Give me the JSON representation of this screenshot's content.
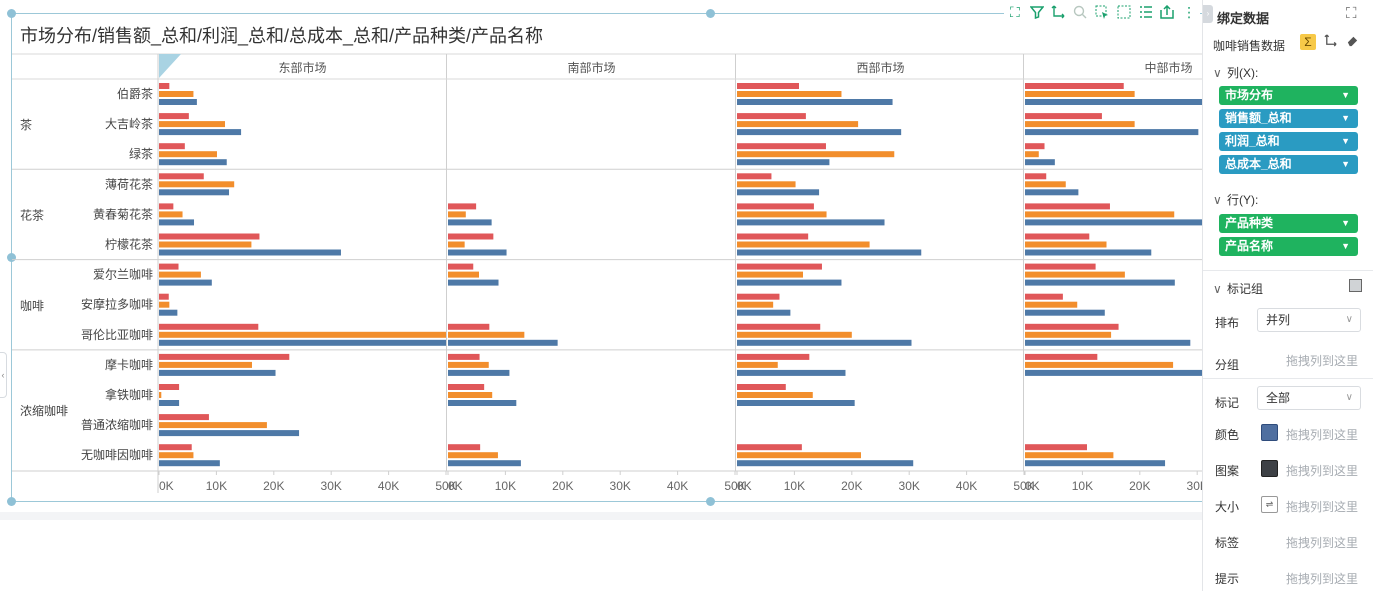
{
  "chart_title": "市场分布/销售额_总和/利润_总和/总成本_总和/产品种类/产品名称",
  "chart_data": {
    "type": "bar",
    "orientation": "horizontal",
    "columns": [
      "东部市场",
      "南部市场",
      "西部市场",
      "中部市场"
    ],
    "groups": [
      {
        "name": "茶",
        "products": [
          "伯爵茶",
          "大吉岭茶",
          "绿茶"
        ]
      },
      {
        "name": "花茶",
        "products": [
          "薄荷花茶",
          "黄春菊花茶",
          "柠檬花茶"
        ]
      },
      {
        "name": "咖啡",
        "products": [
          "爱尔兰咖啡",
          "安摩拉多咖啡",
          "哥伦比亚咖啡"
        ]
      },
      {
        "name": "浓缩咖啡",
        "products": [
          "摩卡咖啡",
          "拿铁咖啡",
          "普通浓缩咖啡",
          "无咖啡因咖啡"
        ]
      }
    ],
    "series": [
      {
        "name": "利润_总和",
        "color": "#e05759"
      },
      {
        "name": "销售额_总和",
        "color": "#f28e2c"
      },
      {
        "name": "总成本_总和",
        "color": "#4e79a7"
      }
    ],
    "x_ticks": [
      "0K",
      "10K",
      "20K",
      "30K",
      "40K",
      "50K"
    ],
    "xlim": [
      0,
      50000
    ],
    "values": {
      "东部市场": {
        "伯爵茶": [
          1800,
          6000,
          6600
        ],
        "大吉岭茶": [
          5200,
          11500,
          14300
        ],
        "绿茶": [
          4500,
          10100,
          11800
        ],
        "薄荷花茶": [
          7800,
          13100,
          12200
        ],
        "黄春菊花茶": [
          2500,
          4100,
          6100
        ],
        "柠檬花茶": [
          17500,
          16100,
          31700
        ],
        "爱尔兰咖啡": [
          3400,
          7300,
          9200
        ],
        "安摩拉多咖啡": [
          1700,
          1800,
          3200
        ],
        "哥伦比亚咖啡": [
          17300,
          50000,
          50000
        ],
        "摩卡咖啡": [
          22700,
          16200,
          20300
        ],
        "拿铁咖啡": [
          3500,
          400,
          3500
        ],
        "普通浓缩咖啡": [
          8700,
          18800,
          24400
        ],
        "无咖啡因咖啡": [
          5700,
          6000,
          10600
        ]
      },
      "南部市场": {
        "伯爵茶": [
          0,
          0,
          0
        ],
        "大吉岭茶": [
          0,
          0,
          0
        ],
        "绿茶": [
          0,
          0,
          0
        ],
        "薄荷花茶": [
          0,
          0,
          0
        ],
        "黄春菊花茶": [
          4900,
          3100,
          7600
        ],
        "柠檬花茶": [
          7900,
          2900,
          10200
        ],
        "爱尔兰咖啡": [
          4400,
          5400,
          8800
        ],
        "安摩拉多咖啡": [
          0,
          0,
          0
        ],
        "哥伦比亚咖啡": [
          7200,
          13300,
          19100
        ],
        "摩卡咖啡": [
          5500,
          7100,
          10700
        ],
        "拿铁咖啡": [
          6300,
          7700,
          11900
        ],
        "普通浓缩咖啡": [
          0,
          0,
          0
        ],
        "无咖啡因咖啡": [
          5600,
          8700,
          12700
        ]
      },
      "西部市场": {
        "伯爵茶": [
          10800,
          18200,
          27100
        ],
        "大吉岭茶": [
          12000,
          21100,
          28600
        ],
        "绿茶": [
          15500,
          27400,
          16100
        ],
        "薄荷花茶": [
          6000,
          10200,
          14300
        ],
        "黄春菊花茶": [
          13400,
          15600,
          25700
        ],
        "柠檬花茶": [
          12400,
          23100,
          32100
        ],
        "爱尔兰咖啡": [
          14800,
          11500,
          18200
        ],
        "安摩拉多咖啡": [
          7400,
          6300,
          9300
        ],
        "哥伦比亚咖啡": [
          14500,
          20000,
          30400
        ],
        "摩卡咖啡": [
          12600,
          7100,
          18900
        ],
        "拿铁咖啡": [
          8500,
          13200,
          20500
        ],
        "普通浓缩咖啡": [
          0,
          0,
          0
        ],
        "无咖啡因咖啡": [
          11300,
          21600,
          30700
        ]
      },
      "中部市场": {
        "伯爵茶": [
          17200,
          19100,
          31100
        ],
        "大吉岭茶": [
          13400,
          19100,
          30200
        ],
        "绿茶": [
          3400,
          2400,
          5200
        ],
        "薄荷花茶": [
          3700,
          7100,
          9300
        ],
        "黄春菊花茶": [
          14800,
          26000,
          31000
        ],
        "柠檬花茶": [
          11200,
          14200,
          22000
        ],
        "爱尔兰咖啡": [
          12300,
          17400,
          26100
        ],
        "安摩拉多咖啡": [
          6600,
          9100,
          13900
        ],
        "哥伦比亚咖啡": [
          16300,
          15000,
          28800
        ],
        "摩卡咖啡": [
          12600,
          25800,
          31000
        ],
        "拿铁咖啡": [
          0,
          0,
          0
        ],
        "普通浓缩咖啡": [
          0,
          0,
          0
        ],
        "无咖啡因咖啡": [
          10800,
          15400,
          24400
        ]
      }
    }
  },
  "panel": {
    "title": "绑定数据",
    "dataset": "咖啡销售数据",
    "columns_label": "列(X):",
    "column_fields": [
      "市场分布",
      "销售额_总和",
      "利润_总和",
      "总成本_总和"
    ],
    "rows_label": "行(Y):",
    "row_fields": [
      "产品种类",
      "产品名称"
    ],
    "mark_group_label": "标记组",
    "layout_label": "排布",
    "layout_value": "并列",
    "group_label": "分组",
    "mark_label": "标记",
    "mark_value": "全部",
    "color_label": "颜色",
    "shape_label": "图案",
    "size_label": "大小",
    "tag_label": "标签",
    "tooltip_label": "提示",
    "drop_hint": "拖拽列到这里"
  }
}
